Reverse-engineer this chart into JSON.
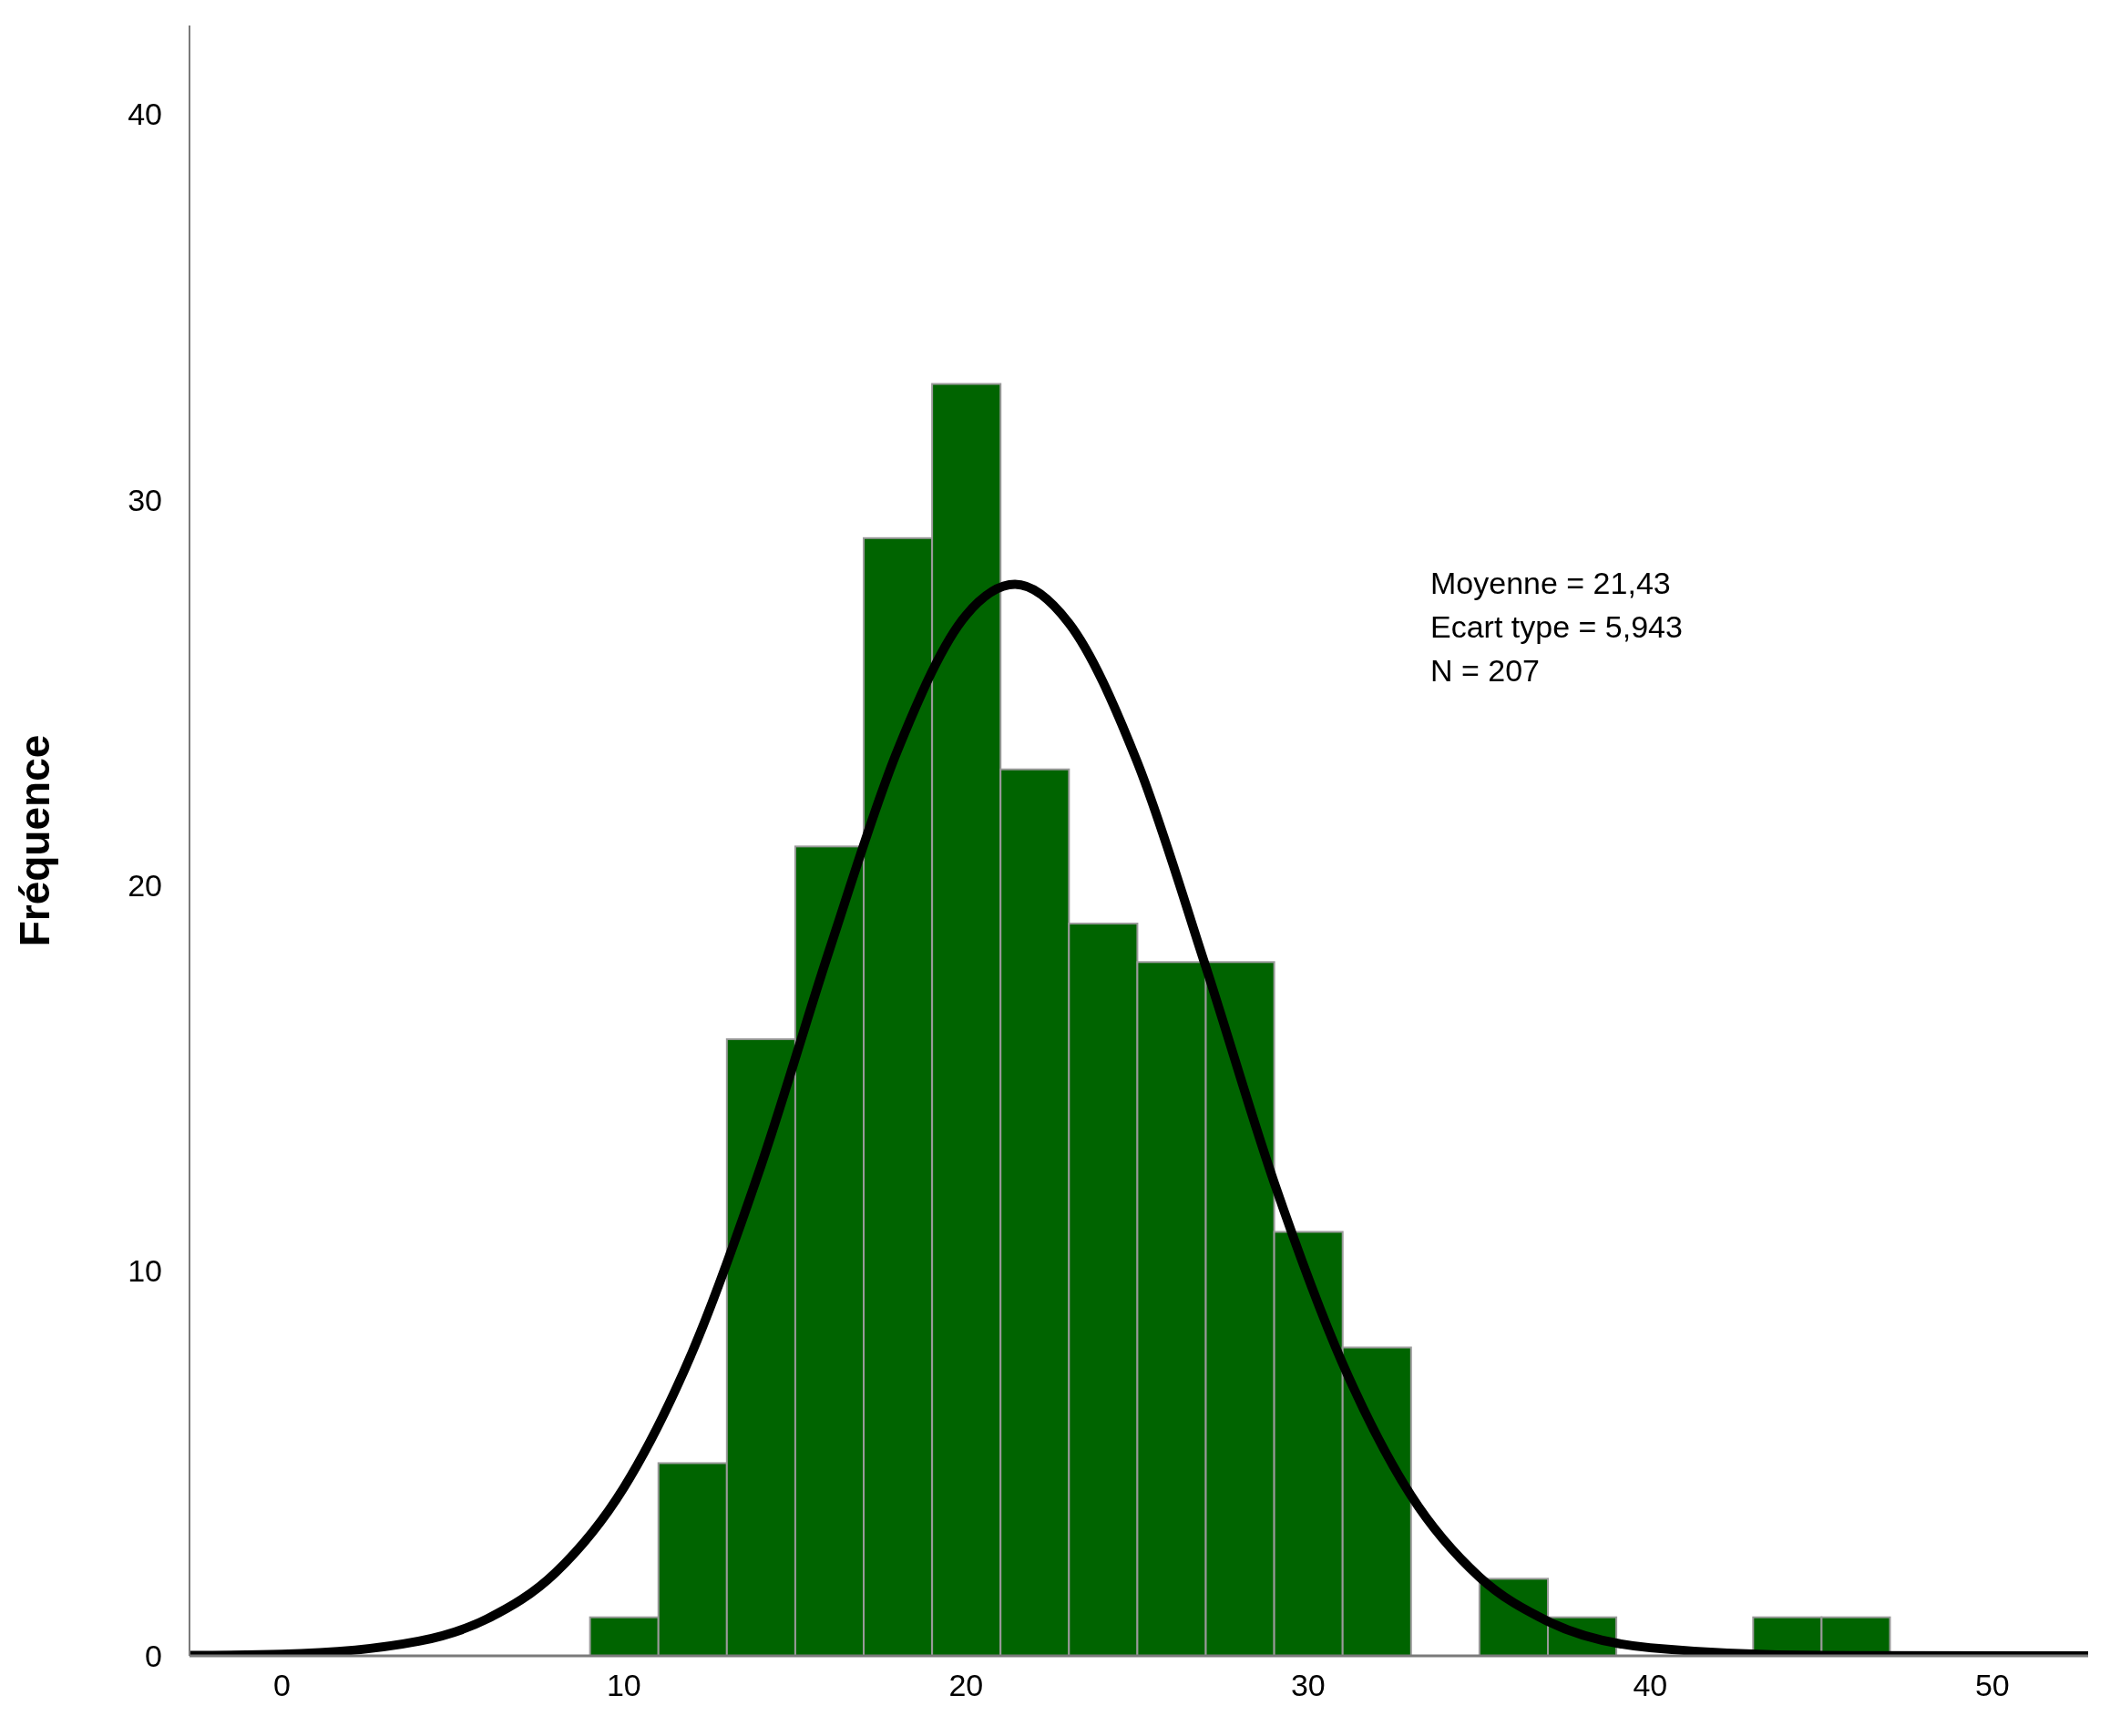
{
  "chart_data": {
    "type": "histogram",
    "ylabel": "Fréquence",
    "bins": [
      9,
      11,
      13,
      15,
      17,
      19,
      21,
      23,
      25,
      27,
      29,
      31,
      33,
      35,
      37,
      39,
      41,
      43,
      45,
      47
    ],
    "values": [
      1,
      5,
      16,
      21,
      29,
      33,
      23,
      19,
      18,
      18,
      11,
      8,
      0,
      2,
      1,
      0,
      0,
      1,
      1
    ],
    "color": "#006400",
    "series": [
      {
        "type": "line",
        "color": "#000000",
        "x": [
          -2.7,
          0,
          4,
          6,
          8,
          10,
          12,
          14,
          16,
          18,
          20,
          21.43,
          23,
          25,
          27,
          29,
          31,
          33,
          35,
          37,
          40,
          45,
          52.8
        ],
        "values": [
          0.01,
          0.04,
          0.38,
          0.96,
          2.16,
          4.37,
          7.89,
          12.7,
          18.3,
          23.5,
          27.0,
          27.8,
          26.8,
          23.2,
          17.9,
          12.3,
          7.6,
          4.17,
          2.05,
          0.9,
          0.21,
          0.01,
          0
        ]
      }
    ],
    "xlim": [
      -2.7,
      52.8
    ],
    "xticks": [
      0,
      10,
      20,
      30,
      40,
      50
    ],
    "ylim": [
      0,
      42.3
    ],
    "yticks": [
      0,
      10,
      20,
      30,
      40
    ],
    "grid": false,
    "legend": false,
    "marker": "none",
    "line_style": "solid",
    "annotations": [
      "Moyenne = 21,43",
      "Ecart type = 5,943",
      "N = 207"
    ]
  }
}
